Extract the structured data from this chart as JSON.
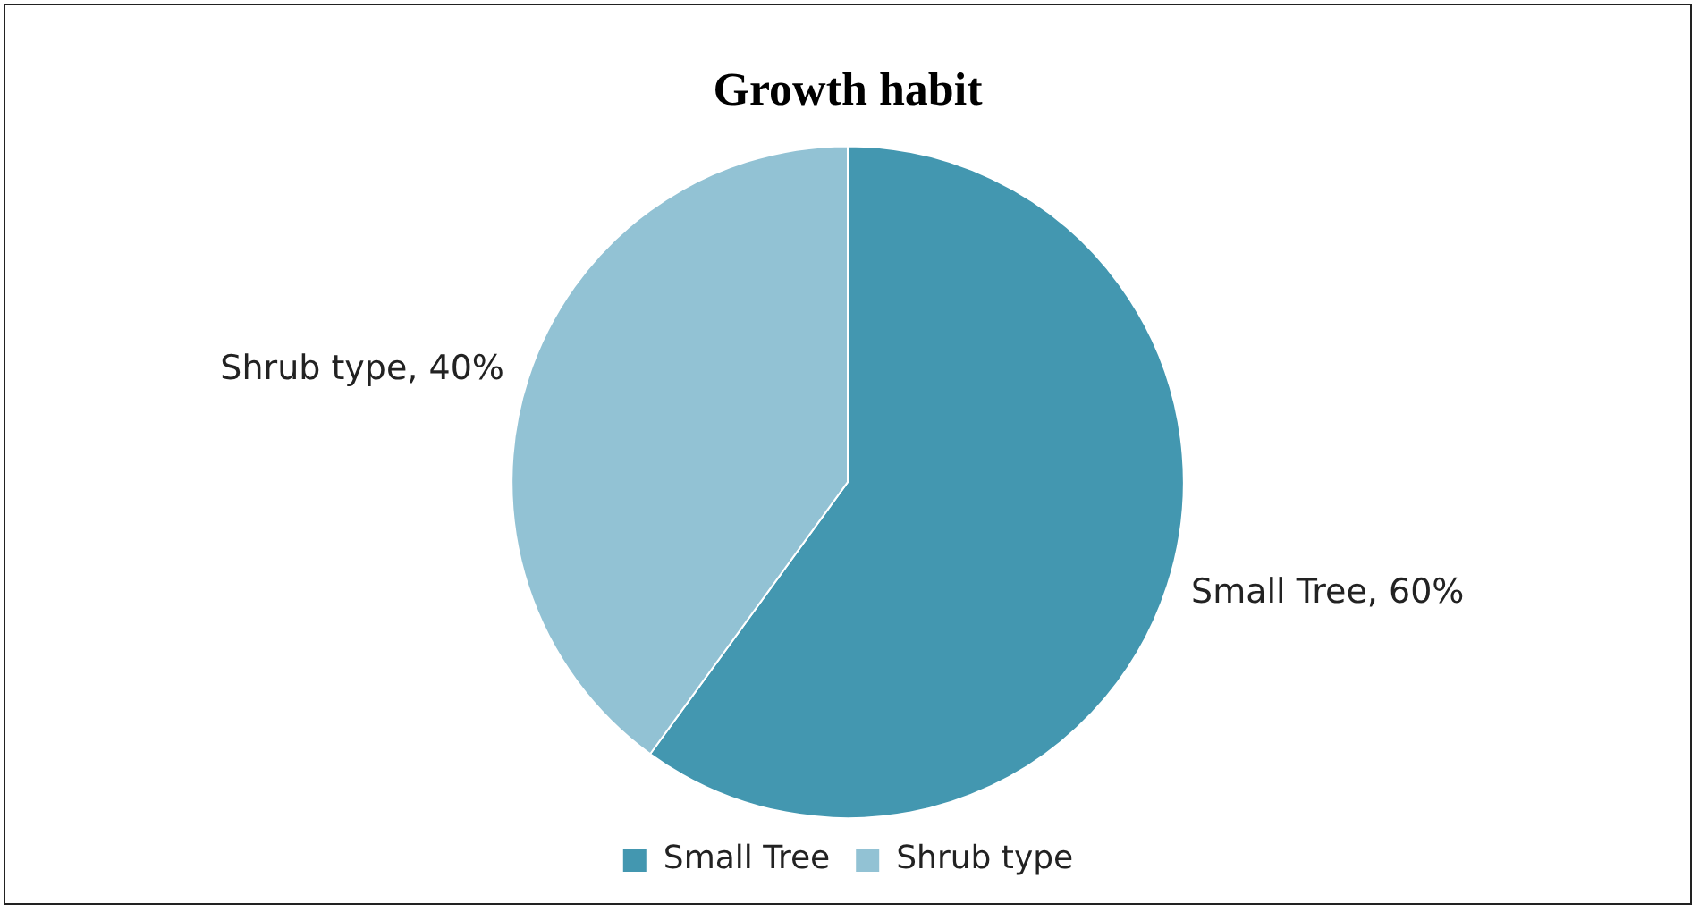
{
  "chart_data": {
    "type": "pie",
    "title": "Growth habit",
    "categories": [
      "Small Tree",
      "Shrub type"
    ],
    "values": [
      60,
      40
    ],
    "colors": [
      "#4397b0",
      "#92c2d4"
    ],
    "value_labels": [
      "Small Tree, 60%",
      "Shrub type, 40%"
    ],
    "legend": "bottom"
  }
}
